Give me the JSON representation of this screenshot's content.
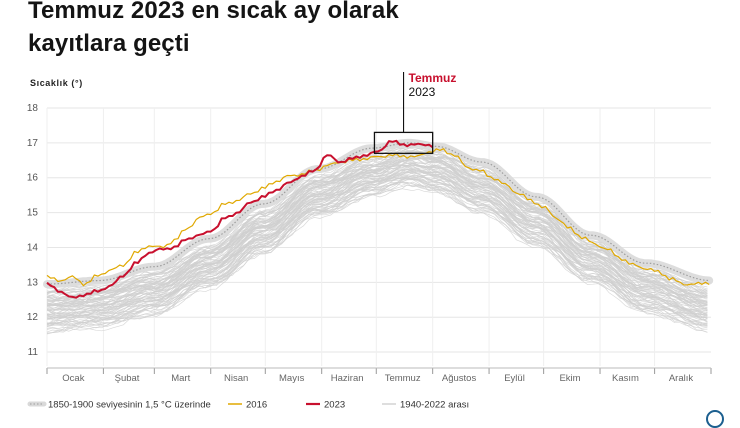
{
  "header": {
    "title_line1": "Temmuz 2023 en sıcak ay olarak",
    "title_line2": "kayıtlara geçti"
  },
  "colors": {
    "highlight": "#c8102e",
    "series_2016": "#e0a800",
    "series_2023": "#c8102e",
    "series_history": "#cfcfcf",
    "band": "#cccccc",
    "grid": "#e6e6e6"
  },
  "annotation": {
    "label_month": "Temmuz",
    "label_year": "2023"
  },
  "chart_data": {
    "type": "line",
    "title": "Temmuz 2023 en sıcak ay olarak kayıtlara geçti",
    "ylabel": "Sıcaklık (°)",
    "xlabel": "",
    "ylim": [
      10.6,
      18
    ],
    "yticks": [
      11,
      12,
      13,
      14,
      15,
      16,
      17,
      18
    ],
    "grid": true,
    "x_unit": "day of year",
    "x_range": [
      1,
      366
    ],
    "months": [
      "Ocak",
      "Şubat",
      "Mart",
      "Nisan",
      "Mayıs",
      "Haziran",
      "Temmuz",
      "Ağustos",
      "Eylül",
      "Ekim",
      "Kasım",
      "Aralık"
    ],
    "legend_position": "bottom",
    "legend": [
      {
        "key": "band",
        "label": "1850-1900 seviyesinin 1,5 °C üzerinde"
      },
      {
        "key": "y2016",
        "label": "2016"
      },
      {
        "key": "y2023",
        "label": "2023"
      },
      {
        "key": "history",
        "label": "1940-2022 arası"
      }
    ],
    "series": [
      {
        "name": "1850-1900 seviyesinin 1,5 °C üzerinde",
        "key": "band",
        "x": [
          1,
          30,
          60,
          90,
          120,
          150,
          180,
          200,
          215,
          240,
          270,
          300,
          330,
          366
        ],
        "values": [
          12.95,
          13.05,
          13.45,
          14.25,
          15.25,
          16.25,
          16.85,
          17.0,
          16.9,
          16.45,
          15.45,
          14.35,
          13.55,
          13.05
        ]
      },
      {
        "name": "2016",
        "key": "y2016",
        "x": [
          1,
          8,
          15,
          22,
          29,
          36,
          43,
          50,
          57,
          64,
          71,
          78,
          85,
          92,
          99,
          106,
          113,
          120,
          127,
          134,
          141,
          148,
          155,
          162,
          169,
          176,
          183,
          190,
          197,
          204,
          211,
          218,
          225,
          232,
          239,
          246,
          253,
          260,
          267,
          274,
          281,
          288,
          295,
          302,
          309,
          316,
          323,
          330,
          337,
          344,
          351,
          358,
          366
        ],
        "values": [
          13.15,
          13.05,
          13.15,
          12.95,
          13.2,
          13.35,
          13.5,
          13.85,
          14.05,
          14.0,
          14.2,
          14.55,
          14.85,
          15.0,
          15.25,
          15.35,
          15.55,
          15.7,
          15.9,
          16.05,
          16.1,
          16.2,
          16.35,
          16.45,
          16.5,
          16.55,
          16.6,
          16.65,
          16.62,
          16.6,
          16.75,
          16.8,
          16.65,
          16.3,
          16.2,
          16.0,
          15.8,
          15.55,
          15.35,
          15.15,
          14.85,
          14.55,
          14.3,
          14.1,
          13.95,
          13.7,
          13.5,
          13.4,
          13.3,
          13.1,
          12.95,
          12.95,
          13.0
        ]
      },
      {
        "name": "2023",
        "key": "y2023",
        "x": [
          1,
          8,
          15,
          22,
          29,
          36,
          43,
          50,
          57,
          64,
          71,
          78,
          85,
          92,
          99,
          106,
          113,
          120,
          127,
          134,
          141,
          148,
          155,
          162,
          169,
          176,
          183,
          190,
          197,
          204,
          211,
          213
        ],
        "values": [
          12.95,
          12.75,
          12.55,
          12.65,
          12.75,
          12.9,
          13.2,
          13.55,
          13.85,
          13.95,
          14.0,
          14.25,
          14.35,
          14.5,
          14.85,
          15.0,
          15.3,
          15.45,
          15.65,
          15.85,
          16.05,
          16.2,
          16.65,
          16.45,
          16.55,
          16.65,
          16.75,
          17.05,
          16.95,
          16.95,
          16.95,
          16.9
        ]
      },
      {
        "name": "1940-2022 arası",
        "key": "history",
        "x": [
          1,
          30,
          60,
          90,
          120,
          150,
          180,
          200,
          215,
          240,
          270,
          300,
          330,
          366
        ],
        "lower": [
          11.6,
          11.7,
          12.1,
          12.85,
          13.85,
          14.9,
          15.5,
          15.75,
          15.6,
          15.0,
          14.05,
          13.0,
          12.15,
          11.6
        ],
        "upper": [
          12.75,
          12.85,
          13.25,
          14.0,
          15.0,
          16.0,
          16.6,
          16.85,
          16.75,
          16.25,
          15.3,
          14.2,
          13.35,
          12.8
        ]
      }
    ]
  }
}
